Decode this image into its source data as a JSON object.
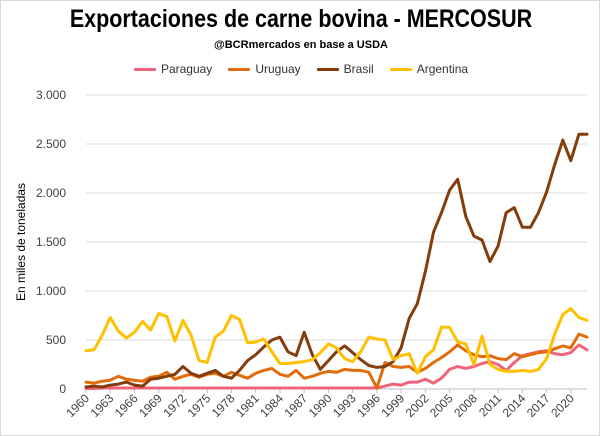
{
  "chart_data": {
    "type": "line",
    "title": "Exportaciones de carne bovina - MERCOSUR",
    "subtitle": "@BCRmercados en base a USDA",
    "xlabel": "",
    "ylabel": "En miles de toneladas",
    "ylim": [
      0,
      3000
    ],
    "yticks": [
      0,
      500,
      1000,
      1500,
      2000,
      2500,
      3000
    ],
    "ytick_labels": [
      "0",
      "500",
      "1.000",
      "1.500",
      "2.000",
      "2.500",
      "3.000"
    ],
    "x": [
      1960,
      1961,
      1962,
      1963,
      1964,
      1965,
      1966,
      1967,
      1968,
      1969,
      1970,
      1971,
      1972,
      1973,
      1974,
      1975,
      1976,
      1977,
      1978,
      1979,
      1980,
      1981,
      1982,
      1983,
      1984,
      1985,
      1986,
      1987,
      1988,
      1989,
      1990,
      1991,
      1992,
      1993,
      1994,
      1995,
      1996,
      1997,
      1998,
      1999,
      2000,
      2001,
      2002,
      2003,
      2004,
      2005,
      2006,
      2007,
      2008,
      2009,
      2010,
      2011,
      2012,
      2013,
      2014,
      2015,
      2016,
      2017,
      2018,
      2019,
      2020,
      2021,
      2022
    ],
    "xtick_labels": [
      "1960",
      "1963",
      "1966",
      "1969",
      "1972",
      "1975",
      "1978",
      "1981",
      "1984",
      "1987",
      "1990",
      "1993",
      "1996",
      "1999",
      "2002",
      "2005",
      "2008",
      "2011",
      "2014",
      "2017",
      "2020"
    ],
    "legend_position": "top",
    "series": [
      {
        "name": "Paraguay",
        "color": "#f0647a",
        "values": [
          5,
          5,
          10,
          10,
          10,
          10,
          10,
          10,
          10,
          10,
          10,
          10,
          10,
          10,
          10,
          10,
          10,
          10,
          10,
          10,
          10,
          10,
          10,
          10,
          10,
          10,
          10,
          10,
          10,
          10,
          10,
          10,
          10,
          10,
          10,
          10,
          10,
          30,
          50,
          40,
          70,
          70,
          100,
          60,
          110,
          200,
          230,
          210,
          230,
          260,
          280,
          250,
          190,
          270,
          340,
          360,
          380,
          390,
          360,
          350,
          370,
          450,
          400
        ]
      },
      {
        "name": "Uruguay",
        "color": "#e36c0a",
        "values": [
          70,
          60,
          80,
          90,
          130,
          100,
          90,
          80,
          120,
          130,
          170,
          100,
          130,
          150,
          120,
          150,
          160,
          130,
          170,
          140,
          110,
          160,
          190,
          210,
          150,
          130,
          190,
          110,
          130,
          160,
          180,
          170,
          200,
          190,
          190,
          170,
          10,
          270,
          230,
          220,
          230,
          170,
          210,
          270,
          320,
          380,
          450,
          390,
          350,
          330,
          340,
          310,
          300,
          360,
          330,
          350,
          370,
          380,
          410,
          440,
          420,
          560,
          530
        ]
      },
      {
        "name": "Brasil",
        "color": "#843c0c",
        "values": [
          20,
          30,
          20,
          40,
          50,
          70,
          40,
          30,
          100,
          110,
          130,
          150,
          230,
          160,
          130,
          160,
          190,
          130,
          110,
          190,
          290,
          350,
          430,
          500,
          530,
          380,
          340,
          580,
          350,
          200,
          290,
          380,
          440,
          370,
          300,
          240,
          220,
          230,
          280,
          420,
          720,
          870,
          1200,
          1600,
          1800,
          2030,
          2140,
          1760,
          1560,
          1520,
          1300,
          1460,
          1800,
          1850,
          1650,
          1650,
          1800,
          2010,
          2290,
          2540,
          2330,
          2600,
          2600
        ]
      },
      {
        "name": "Argentina",
        "color": "#ffc000",
        "values": [
          390,
          400,
          550,
          730,
          590,
          520,
          580,
          690,
          600,
          770,
          740,
          490,
          700,
          550,
          290,
          270,
          530,
          590,
          750,
          710,
          470,
          480,
          510,
          380,
          260,
          260,
          270,
          280,
          300,
          370,
          460,
          420,
          310,
          280,
          380,
          530,
          510,
          500,
          300,
          340,
          360,
          160,
          330,
          400,
          630,
          630,
          480,
          460,
          250,
          540,
          250,
          200,
          180,
          180,
          190,
          180,
          200,
          310,
          560,
          760,
          820,
          730,
          700
        ]
      }
    ]
  }
}
